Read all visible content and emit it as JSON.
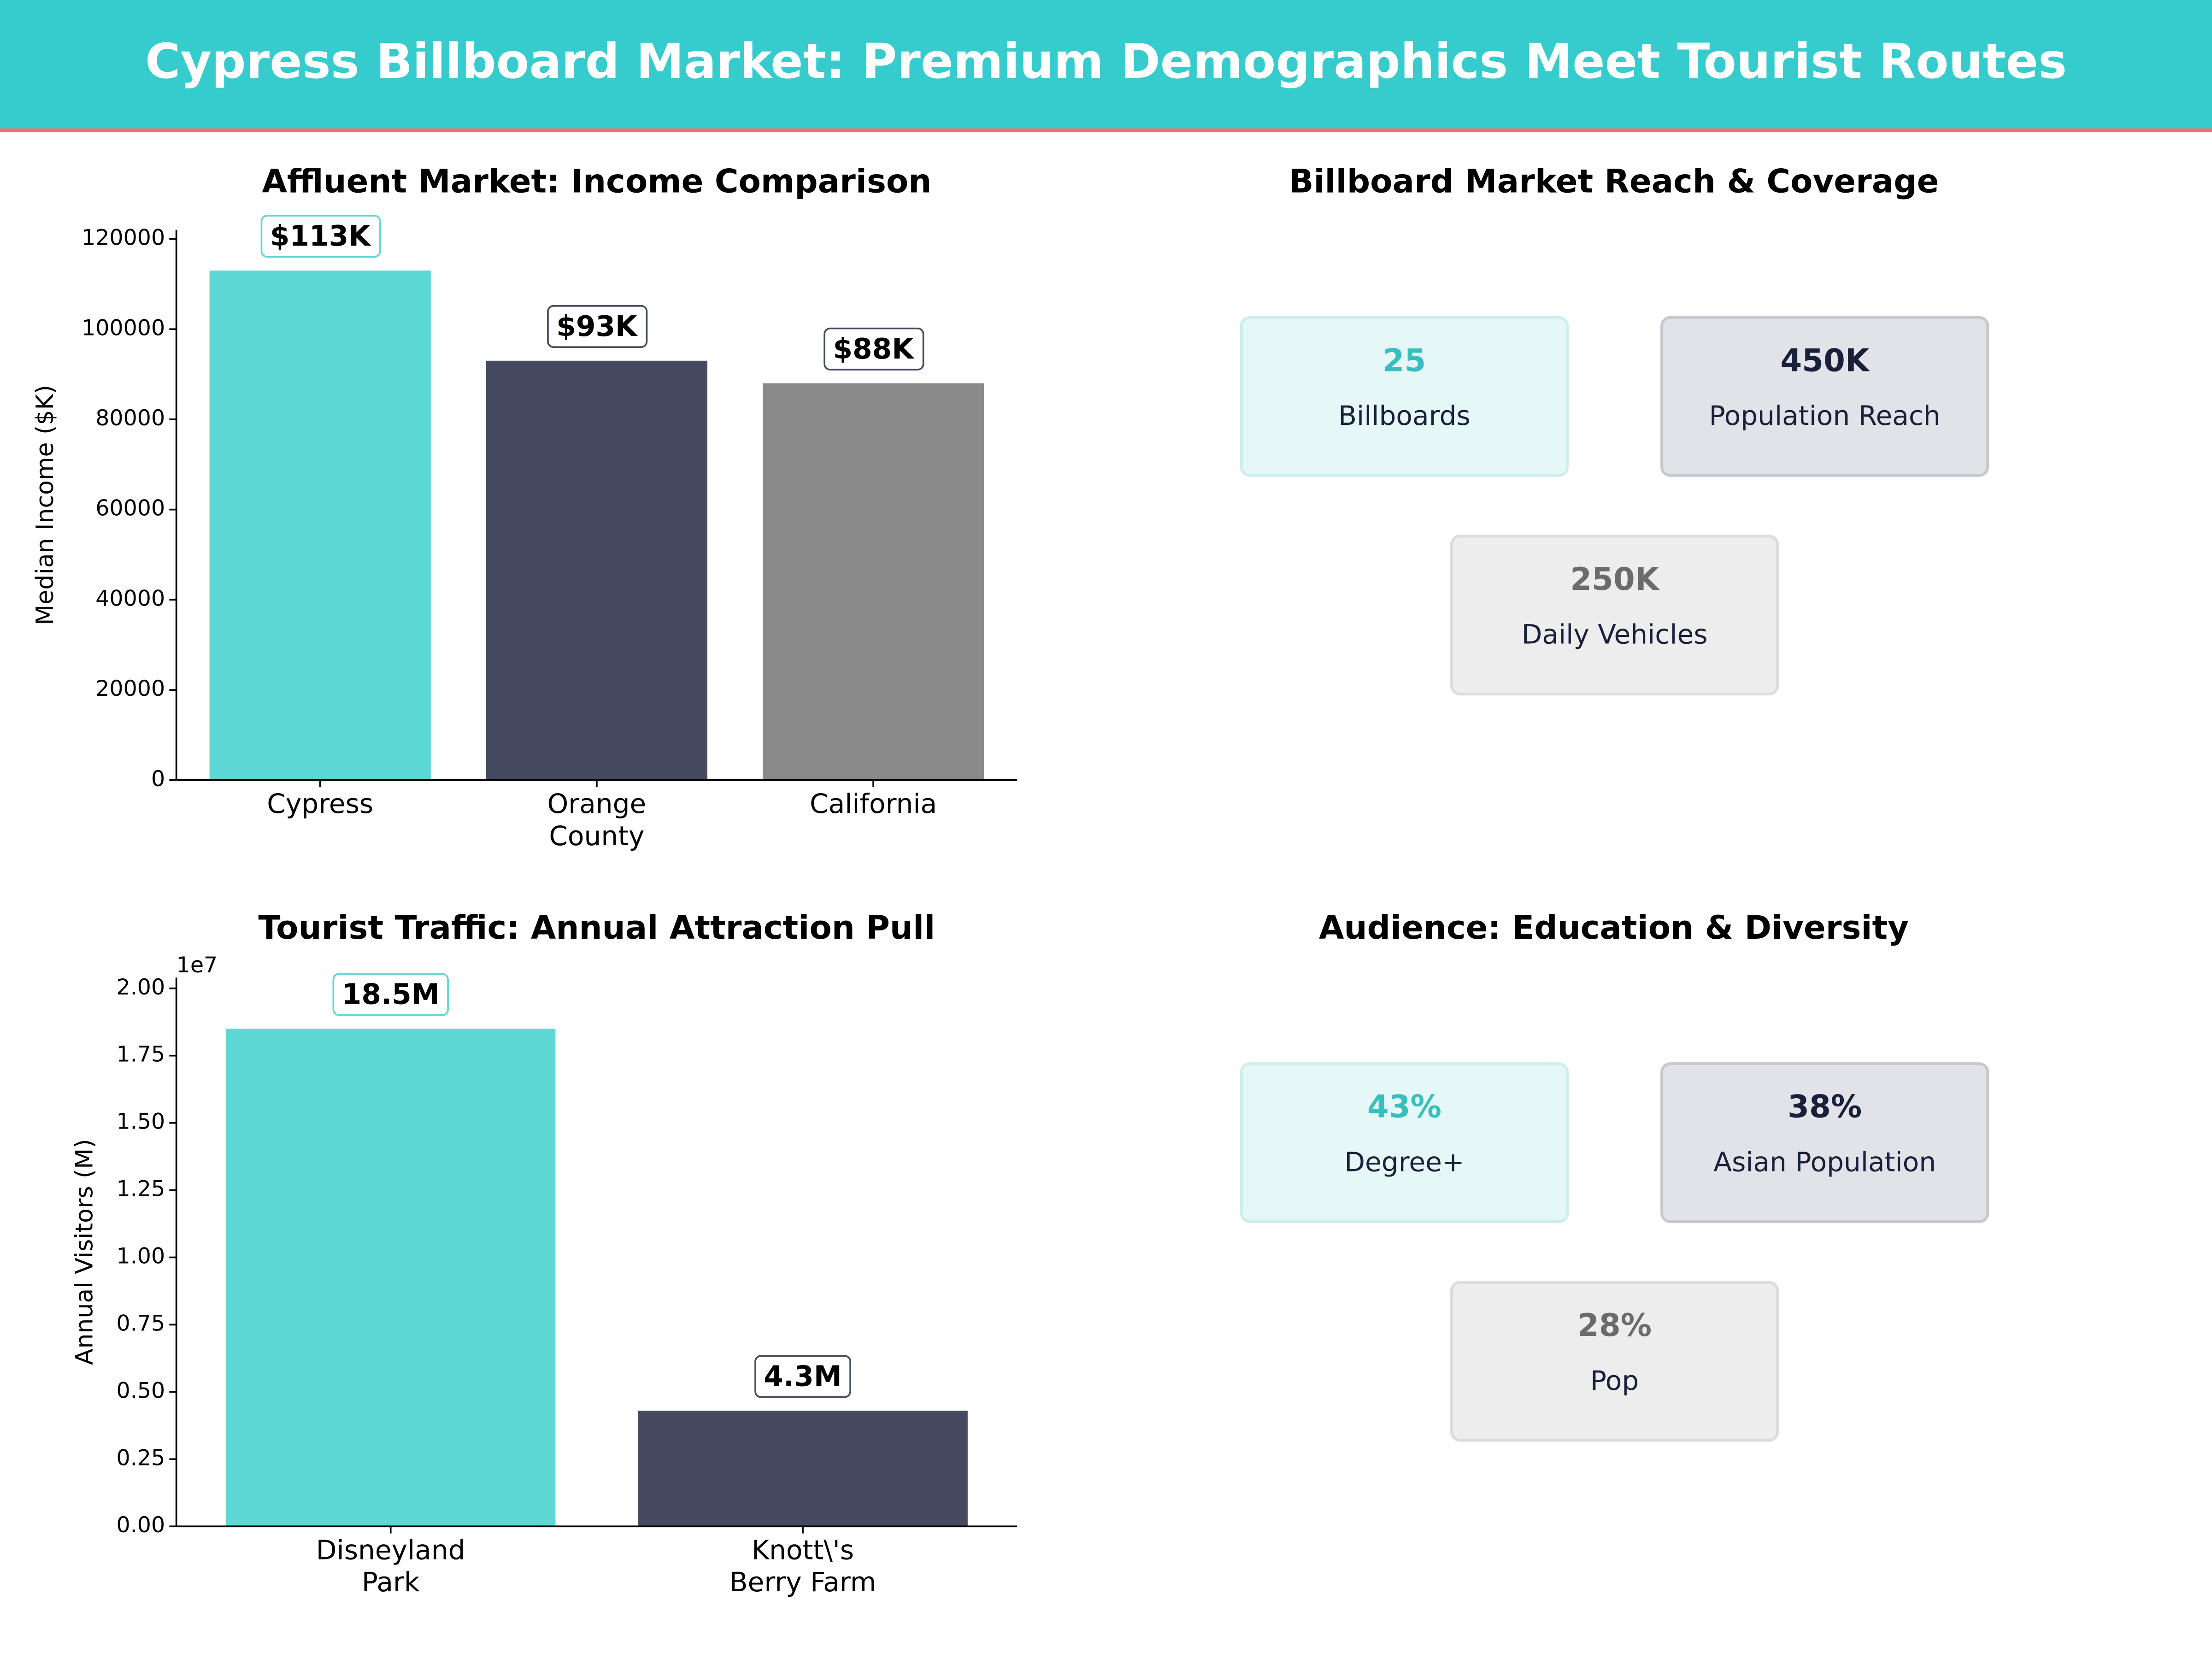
{
  "header": {
    "title": "Cypress Billboard Market: Premium Demographics Meet Tourist Routes"
  },
  "chart_data": [
    {
      "type": "bar",
      "title": "Affluent Market: Income Comparison",
      "ylabel": "Median Income ($K)",
      "categories": [
        "Cypress",
        "Orange\nCounty",
        "California"
      ],
      "values": [
        113000,
        93000,
        88000
      ],
      "value_labels": [
        "$113K",
        "$93K",
        "$88K"
      ],
      "colors": [
        "#5ed8d4",
        "#464a60",
        "#8a8a8a"
      ],
      "ylim": [
        0,
        122000
      ],
      "yticks": [
        0,
        20000,
        40000,
        60000,
        80000,
        100000,
        120000
      ]
    },
    {
      "type": "bar",
      "title": "Tourist Traffic: Annual Attraction Pull",
      "ylabel": "Annual Visitors (M)",
      "offset_label": "1e7",
      "categories": [
        "Disneyland\nPark",
        "Knott\\'s\nBerry Farm"
      ],
      "values": [
        18500000,
        4300000
      ],
      "value_labels": [
        "18.5M",
        "4.3M"
      ],
      "colors": [
        "#5ed8d4",
        "#464a60"
      ],
      "ylim": [
        0,
        20400000
      ],
      "yticks": [
        {
          "value": 0,
          "label": "0.00"
        },
        {
          "value": 2500000,
          "label": "0.25"
        },
        {
          "value": 5000000,
          "label": "0.50"
        },
        {
          "value": 7500000,
          "label": "0.75"
        },
        {
          "value": 10000000,
          "label": "1.00"
        },
        {
          "value": 12500000,
          "label": "1.25"
        },
        {
          "value": 15000000,
          "label": "1.50"
        },
        {
          "value": 17500000,
          "label": "1.75"
        },
        {
          "value": 20000000,
          "label": "2.00"
        }
      ]
    }
  ],
  "kpi_panels": [
    {
      "title": "Billboard Market Reach & Coverage",
      "cards": [
        {
          "value": "25",
          "label": "Billboards"
        },
        {
          "value": "450K",
          "label": "Population Reach"
        },
        {
          "value": "250K",
          "label": "Daily Vehicles"
        }
      ]
    },
    {
      "title": "Audience: Education & Diversity",
      "cards": [
        {
          "value": "43%",
          "label": "Degree+"
        },
        {
          "value": "38%",
          "label": "Asian Population"
        },
        {
          "value": "28%",
          "label": "Pop"
        }
      ]
    }
  ]
}
